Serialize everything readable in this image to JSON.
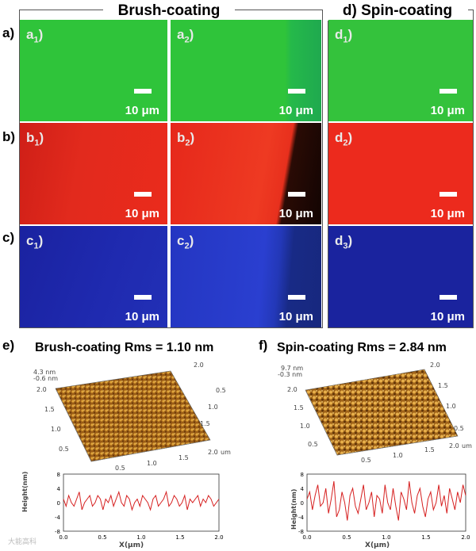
{
  "groups": {
    "brush": {
      "title": "Brush-coating"
    },
    "spin": {
      "label": "d)",
      "title": "Spin-coating"
    }
  },
  "rows": [
    {
      "label": "a)",
      "color": "#2fc43a"
    },
    {
      "label": "b)",
      "color": "#e8261c"
    },
    {
      "label": "c)",
      "color": "#1f28a6"
    }
  ],
  "panels": {
    "a1": {
      "letter": "a",
      "sub": "1"
    },
    "a2": {
      "letter": "a",
      "sub": "2"
    },
    "d1": {
      "letter": "d",
      "sub": "1"
    },
    "b1": {
      "letter": "b",
      "sub": "1"
    },
    "b2": {
      "letter": "b",
      "sub": "2"
    },
    "d2": {
      "letter": "d",
      "sub": "2"
    },
    "c1": {
      "letter": "c",
      "sub": "1"
    },
    "c2": {
      "letter": "c",
      "sub": "2"
    },
    "d3": {
      "letter": "d",
      "sub": "3"
    }
  },
  "scalebar": {
    "text": "10 μm"
  },
  "afm": {
    "e": {
      "label": "e)",
      "title": "Brush-coating Rms = 1.10 nm",
      "zmax": "4.3 nm",
      "zmin": "-0.6 nm",
      "profile_xlabel": "X(μm)",
      "profile_ylabel": "Height(nm)",
      "profile_yticks": [
        "8",
        "4",
        "0",
        "-4",
        "-8"
      ],
      "profile_xticks": [
        "0.0",
        "0.5",
        "1.0",
        "1.5",
        "2.0"
      ],
      "surface_ticks_y": [
        "2.0",
        "1.5",
        "1.0",
        "0.5"
      ],
      "surface_ticks_x": [
        "0.5",
        "1.0",
        "1.5",
        "2.0"
      ],
      "surface_ticks_top": [
        "0.5",
        "1.0",
        "1.5",
        "2.0"
      ],
      "unit": "um",
      "profile": [
        1,
        -1,
        2,
        0,
        -1,
        1,
        3,
        -2,
        0,
        1,
        2,
        -1,
        0,
        2,
        1,
        -2,
        1,
        0,
        2,
        -1,
        1,
        3,
        0,
        -1,
        2,
        1,
        -2,
        0,
        1,
        -1,
        2,
        1,
        0,
        -2,
        1,
        2,
        -1,
        0,
        1,
        3,
        -1,
        0,
        2,
        1,
        -1,
        0,
        2,
        -2,
        1,
        0,
        1,
        2,
        -1,
        1,
        0,
        2,
        1,
        -1,
        0,
        1
      ]
    },
    "f": {
      "label": "f)",
      "title": "Spin-coating Rms = 2.84 nm",
      "zmax": "9.7 nm",
      "zmin": "-0.3 nm",
      "profile_xlabel": "X(μm)",
      "profile_ylabel": "Height(nm)",
      "profile_yticks": [
        "8",
        "4",
        "0",
        "-4",
        "-8"
      ],
      "profile_xticks": [
        "0.0",
        "0.5",
        "1.0",
        "1.5",
        "2.0"
      ],
      "surface_ticks_y": [
        "2.0",
        "1.5",
        "1.0",
        "0.5"
      ],
      "surface_ticks_x": [
        "0.5",
        "1.0",
        "1.5",
        "2.0"
      ],
      "surface_ticks_top": [
        "0.5",
        "1.0",
        "1.5",
        "2.0"
      ],
      "unit": "um",
      "profile": [
        1,
        3,
        -2,
        2,
        5,
        -1,
        0,
        4,
        -3,
        1,
        6,
        -4,
        -2,
        3,
        0,
        -5,
        2,
        4,
        -1,
        -3,
        1,
        5,
        -2,
        0,
        3,
        -4,
        2,
        1,
        -3,
        5,
        0,
        -2,
        4,
        -1,
        -5,
        3,
        1,
        -2,
        6,
        0,
        -3,
        2,
        4,
        -1,
        -4,
        1,
        3,
        -2,
        0,
        5,
        -1,
        2,
        -3,
        4,
        1,
        -2,
        3,
        0,
        5,
        2
      ]
    }
  },
  "watermark": "大能高科"
}
